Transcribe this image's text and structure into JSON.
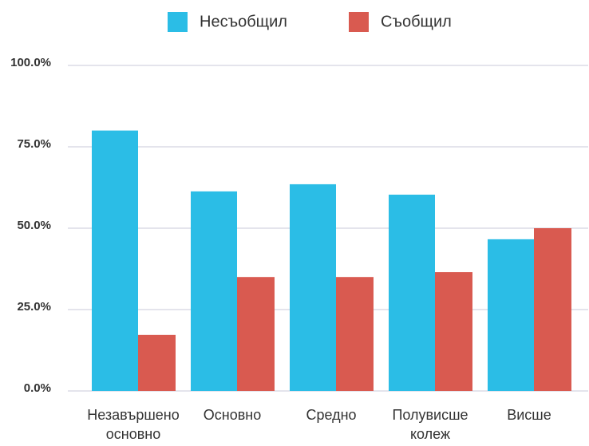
{
  "chart_data": {
    "type": "bar",
    "categories": [
      "Незавършено основно",
      "Основно",
      "Средно",
      "Полувисше колеж",
      "Висше"
    ],
    "series": [
      {
        "name": "Несъобщил",
        "color": "#2bbde6",
        "values": [
          80,
          61.3,
          63.5,
          60.3,
          46.6
        ]
      },
      {
        "name": "Съобщил",
        "color": "#d95a50",
        "values": [
          17.2,
          35,
          35,
          36.5,
          50
        ]
      }
    ],
    "ylim": [
      0,
      100
    ],
    "yticks": [
      {
        "value": 0,
        "label": "0.0%"
      },
      {
        "value": 25,
        "label": "25.0%"
      },
      {
        "value": 50,
        "label": "50.0%"
      },
      {
        "value": 75,
        "label": "75.0%"
      },
      {
        "value": 100,
        "label": "100.0%"
      }
    ],
    "grid": true,
    "legend": "top"
  }
}
